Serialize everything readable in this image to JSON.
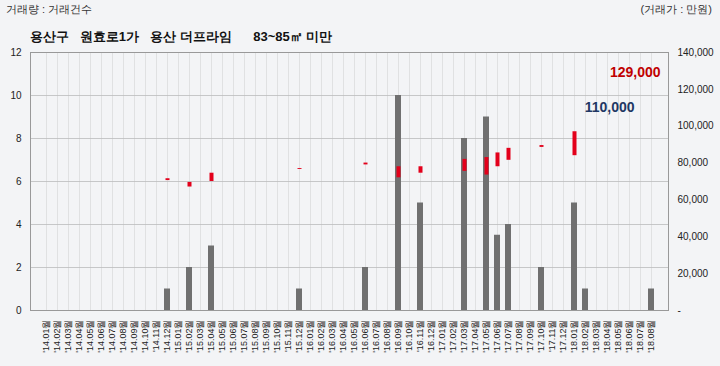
{
  "chart_data": {
    "type": "bar",
    "title": "용산구   원효로1가   용산 더프라임      83~85㎡ 미만",
    "y_label": "거래량 : 거래건수",
    "y2_label": "(거래가 : 만원)",
    "categories": [
      "'14.01월",
      "'14.02월",
      "'14.03월",
      "'14.04월",
      "'14.05월",
      "'14.06월",
      "'14.07월",
      "'14.08월",
      "'14.09월",
      "'14.10월",
      "'14.11월",
      "'14.12월",
      "'15.01월",
      "'15.02월",
      "'15.03월",
      "'15.04월",
      "'15.05월",
      "'15.06월",
      "'15.07월",
      "'15.08월",
      "'15.09월",
      "'15.10월",
      "'15.11월",
      "'15.12월",
      "'16.01월",
      "'16.02월",
      "'16.03월",
      "'16.04월",
      "'16.05월",
      "'16.06월",
      "'16.07월",
      "'16.08월",
      "'16.09월",
      "'16.10월",
      "'16.11월",
      "'16.12월",
      "'17.01월",
      "'17.02월",
      "'17.03월",
      "'17.04월",
      "'17.05월",
      "'17.06월",
      "'17.07월",
      "'17.08월",
      "'17.09월",
      "'17.10월",
      "'17.11월",
      "'17.12월",
      "'18.01월",
      "'18.02월",
      "'18.03월",
      "'18.04월",
      "'18.05월",
      "'18.06월",
      "'18.07월",
      "'18.08월"
    ],
    "series": [
      {
        "type": "bar",
        "color": "#707070",
        "values": [
          0,
          0,
          0,
          0,
          0,
          0,
          0,
          0,
          0,
          0,
          0,
          1,
          0,
          2,
          0,
          3,
          0,
          0,
          0,
          0,
          0,
          0,
          0,
          1,
          0,
          0,
          0,
          0,
          0,
          2,
          0,
          0,
          10,
          0,
          5,
          0,
          0,
          0,
          8,
          0,
          9,
          3.5,
          4,
          0,
          0,
          2,
          0,
          0,
          5,
          1,
          0,
          0,
          0,
          0,
          0,
          1
        ]
      },
      {
        "type": "range",
        "axis": "y2",
        "color": "#e3001b",
        "low": [
          null,
          null,
          null,
          null,
          null,
          null,
          null,
          null,
          null,
          null,
          null,
          70500,
          null,
          67000,
          null,
          70000,
          null,
          null,
          null,
          null,
          null,
          null,
          null,
          76500,
          null,
          null,
          null,
          null,
          null,
          79000,
          null,
          null,
          72000,
          null,
          74500,
          null,
          null,
          null,
          75500,
          null,
          73500,
          78000,
          81500,
          null,
          null,
          88500,
          null,
          null,
          84000,
          null,
          null,
          null,
          null,
          null,
          null,
          null
        ],
        "high": [
          null,
          null,
          null,
          null,
          null,
          null,
          null,
          null,
          null,
          null,
          null,
          71500,
          null,
          69500,
          null,
          74500,
          null,
          null,
          null,
          null,
          null,
          null,
          null,
          77000,
          null,
          null,
          null,
          null,
          null,
          80000,
          null,
          null,
          78000,
          null,
          78000,
          null,
          null,
          null,
          82000,
          null,
          83000,
          85500,
          88000,
          null,
          null,
          89500,
          null,
          null,
          97000,
          null,
          null,
          null,
          null,
          null,
          null,
          null
        ]
      }
    ],
    "ylim": [
      0,
      12
    ],
    "yticks": [
      0,
      2,
      4,
      6,
      8,
      10,
      12
    ],
    "y2lim": [
      0,
      140000
    ],
    "y2ticks": [
      {
        "value": 0,
        "label": "-"
      },
      {
        "value": 20000,
        "label": "20,000"
      },
      {
        "value": 40000,
        "label": "40,000"
      },
      {
        "value": 60000,
        "label": "60,000"
      },
      {
        "value": 80000,
        "label": "80,000"
      },
      {
        "value": 100000,
        "label": "100,000"
      },
      {
        "value": 120000,
        "label": "120,000"
      },
      {
        "value": 140000,
        "label": "140,000"
      }
    ],
    "annotations": [
      {
        "text": "129,000",
        "value": 129000,
        "color": "#c00000"
      },
      {
        "text": "110,000",
        "value": 110000,
        "color": "#1f3864"
      }
    ],
    "grid": true
  }
}
